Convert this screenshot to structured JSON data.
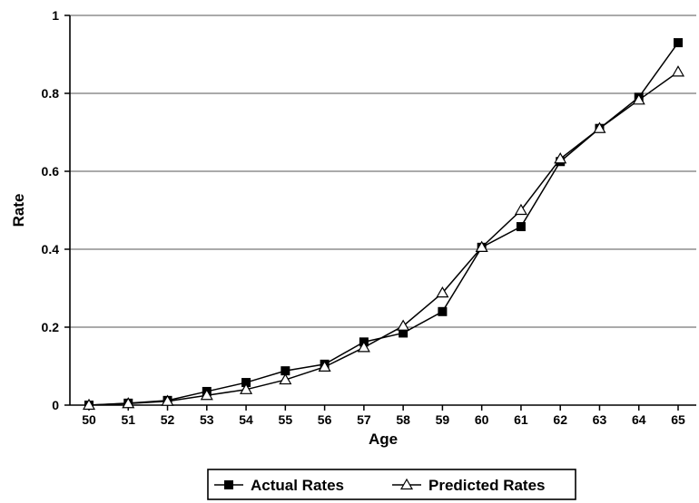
{
  "chart_data": {
    "type": "line",
    "title": "",
    "xlabel": "Age",
    "ylabel": "Rate",
    "x": [
      50,
      51,
      52,
      53,
      54,
      55,
      56,
      57,
      58,
      59,
      60,
      61,
      62,
      63,
      64,
      65
    ],
    "x_tick_labels": [
      "50",
      "51",
      "52",
      "53",
      "54",
      "55",
      "56",
      "57",
      "58",
      "59",
      "60",
      "61",
      "62",
      "63",
      "64",
      "65"
    ],
    "y_tick_labels": [
      "0",
      "0.2",
      "0.4",
      "0.6",
      "0.8",
      "1"
    ],
    "ylim": [
      0,
      1
    ],
    "grid": "horizontal",
    "legend_position": "bottom",
    "series": [
      {
        "name": "Actual Rates",
        "marker": "filled-square",
        "color": "#000000",
        "values": [
          0.0,
          0.005,
          0.012,
          0.035,
          0.058,
          0.088,
          0.105,
          0.162,
          0.185,
          0.24,
          0.405,
          0.458,
          0.625,
          0.71,
          0.79,
          0.93
        ]
      },
      {
        "name": "Predicted Rates",
        "marker": "open-triangle",
        "color": "#000000",
        "values": [
          0.0,
          0.004,
          0.01,
          0.025,
          0.04,
          0.065,
          0.098,
          0.148,
          0.203,
          0.288,
          0.405,
          0.5,
          0.632,
          0.71,
          0.783,
          0.855
        ]
      }
    ]
  }
}
